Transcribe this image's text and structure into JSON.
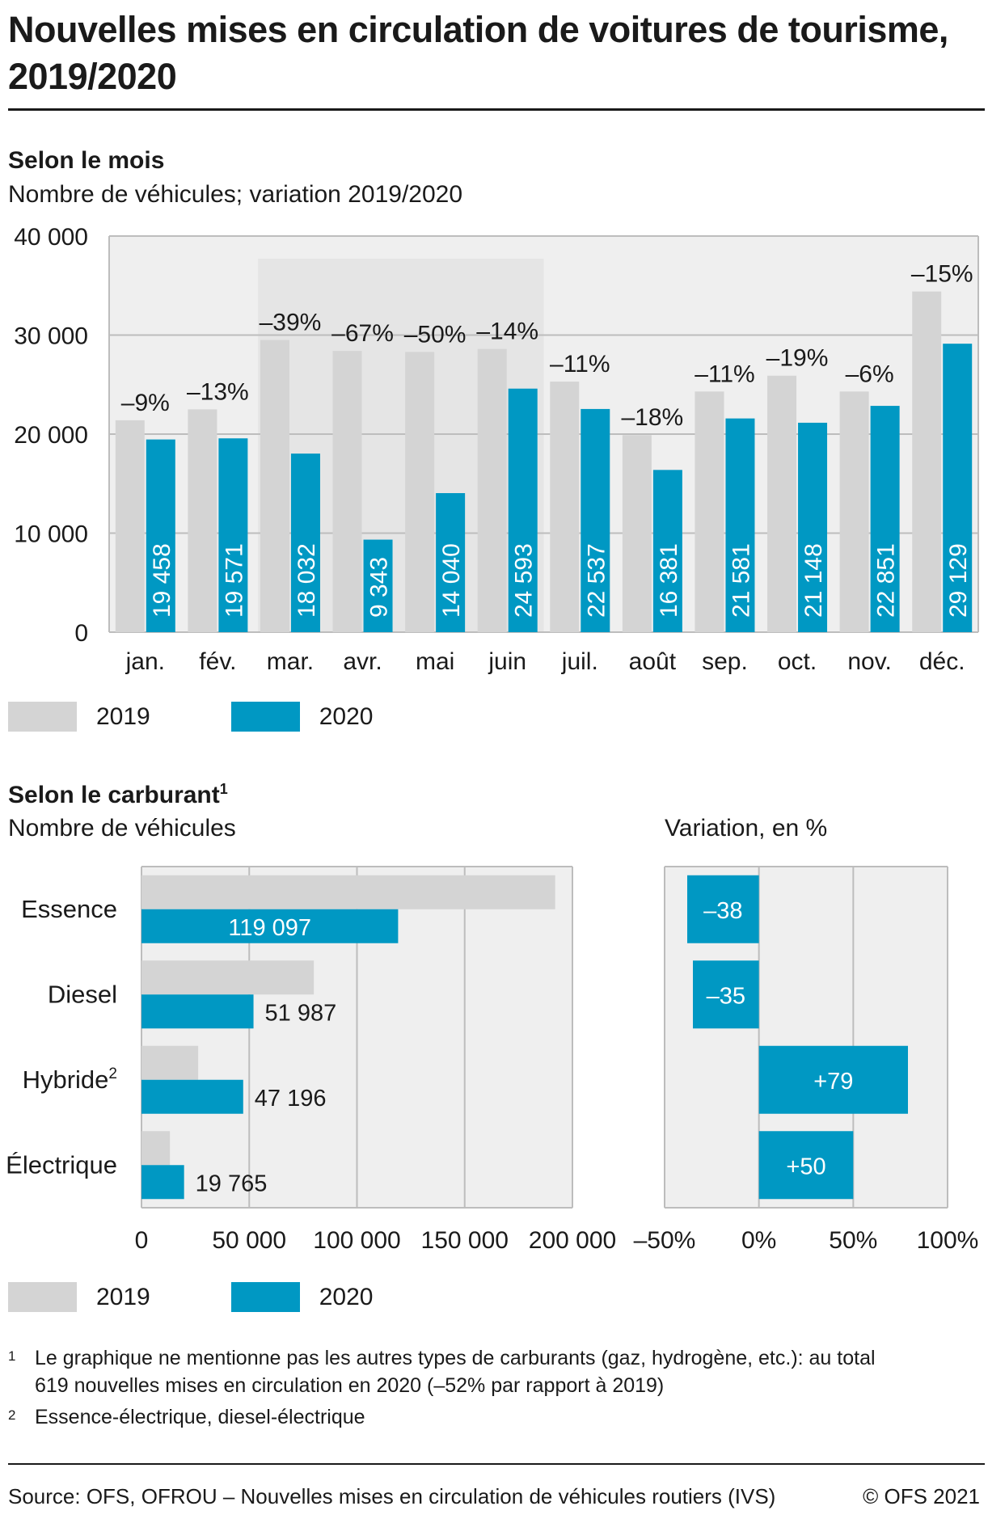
{
  "title": "Nouvelles mises en circulation de voitures de tourisme, 2019/2020",
  "section1": {
    "title": "Selon le mois",
    "subtitle": "Nombre de véhicules; variation 2019/2020"
  },
  "section2": {
    "title": "Selon le carburant",
    "title_sup": "1",
    "subtitle_left": "Nombre de véhicules",
    "subtitle_right": "Variation, en %"
  },
  "legend": {
    "label_2019": "2019",
    "label_2020": "2020"
  },
  "colors": {
    "y2019": "#d4d4d4",
    "y2020": "#0098c3",
    "plot_bg": "#efefef",
    "grid": "#bdbdbd",
    "highlight": "#e5e5e5"
  },
  "chart_data": [
    {
      "type": "bar",
      "name": "Selon le mois",
      "categories": [
        "jan.",
        "fév.",
        "mar.",
        "avr.",
        "mai",
        "juin",
        "juil.",
        "août",
        "sep.",
        "oct.",
        "nov.",
        "déc."
      ],
      "series": [
        {
          "name": "2019",
          "values": [
            21400,
            22500,
            29500,
            28400,
            28300,
            28600,
            25300,
            19900,
            24300,
            25900,
            24300,
            34400
          ]
        },
        {
          "name": "2020",
          "values": [
            19458,
            19571,
            18032,
            9343,
            14040,
            24593,
            22537,
            16381,
            21581,
            21148,
            22851,
            29129
          ]
        }
      ],
      "value_labels": [
        "19 458",
        "19 571",
        "18 032",
        "9 343",
        "14 040",
        "24 593",
        "22 537",
        "16 381",
        "21 581",
        "21 148",
        "22 851",
        "29 129"
      ],
      "variation_labels": [
        "–9%",
        "–13%",
        "–39%",
        "–67%",
        "–50%",
        "–14%",
        "–11%",
        "–18%",
        "–11%",
        "–19%",
        "–6%",
        "–15%"
      ],
      "highlight_range": [
        "mar.",
        "juin"
      ],
      "ylim": [
        0,
        40000
      ],
      "yticks": [
        0,
        10000,
        20000,
        30000,
        40000
      ],
      "ytick_labels": [
        "0",
        "10 000",
        "20 000",
        "30 000",
        "40 000"
      ],
      "grid": true
    },
    {
      "type": "bar",
      "orientation": "horizontal",
      "name": "Selon le carburant",
      "categories": [
        "Essence",
        "Diesel",
        "Hybride",
        "Électrique"
      ],
      "category_sup": [
        "",
        "",
        "2",
        ""
      ],
      "series": [
        {
          "name": "2019",
          "values": [
            192000,
            80000,
            26300,
            13200
          ]
        },
        {
          "name": "2020",
          "values": [
            119097,
            51987,
            47196,
            19765
          ]
        }
      ],
      "value_labels": [
        "119 097",
        "51 987",
        "47 196",
        "19 765"
      ],
      "xlim": [
        0,
        200000
      ],
      "xticks": [
        0,
        50000,
        100000,
        150000,
        200000
      ],
      "xtick_labels": [
        "0",
        "50 000",
        "100 000",
        "150 000",
        "200 000"
      ],
      "grid": true
    },
    {
      "type": "bar",
      "orientation": "horizontal",
      "name": "Variation, en %",
      "categories": [
        "Essence",
        "Diesel",
        "Hybride",
        "Électrique"
      ],
      "values": [
        -38,
        -35,
        79,
        50
      ],
      "value_labels": [
        "–38",
        "–35",
        "+79",
        "+50"
      ],
      "xlim": [
        -50,
        100
      ],
      "xticks": [
        -50,
        0,
        50,
        100
      ],
      "xtick_labels": [
        "–50%",
        "0%",
        "50%",
        "100%"
      ],
      "grid": true
    }
  ],
  "footnotes": [
    {
      "num": "1",
      "text_line1": "Le graphique ne mentionne pas les autres types de carburants (gaz, hydrogène, etc.): au total",
      "text_line2": "619 nouvelles mises en circulation en 2020 (–52% par rapport à 2019)"
    },
    {
      "num": "2",
      "text_line1": "Essence-électrique, diesel-électrique"
    }
  ],
  "source": "Source: OFS, OFROU – Nouvelles mises en circulation de véhicules routiers (IVS)",
  "copyright": "© OFS 2021"
}
